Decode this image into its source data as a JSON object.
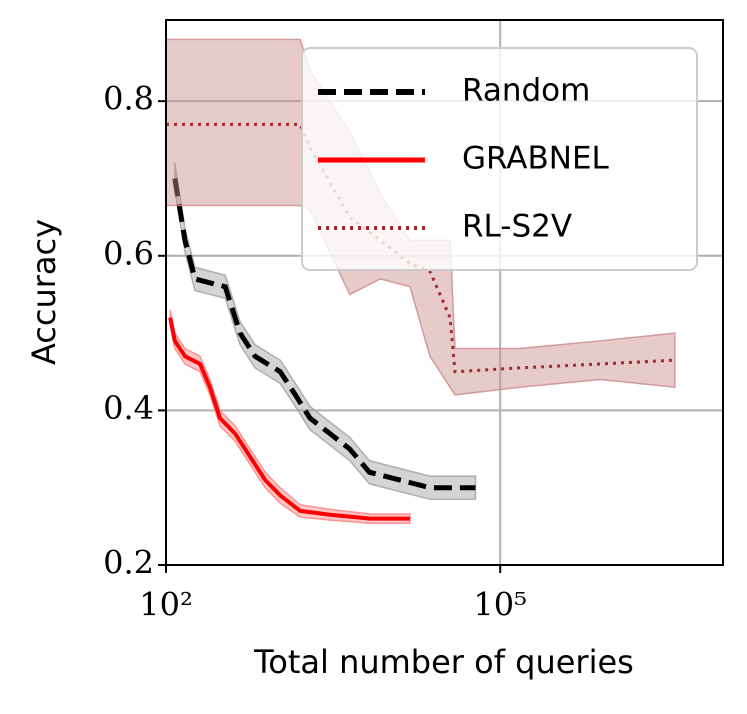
{
  "chart_data": {
    "type": "line",
    "x_label": "Total number of queries",
    "y_label": "Accuracy",
    "xscale": "log",
    "xlim": [
      100,
      10000000
    ],
    "xticks": [
      {
        "value": 100,
        "label": "10²"
      },
      {
        "value": 100000,
        "label": "10⁵"
      }
    ],
    "ylim": [
      0.2,
      0.905
    ],
    "yticks": [
      0.2,
      0.4,
      0.6,
      0.8
    ],
    "grid": true,
    "legend": "upper right",
    "series": [
      {
        "name": "Random",
        "color": "#000000",
        "band_color": "#a0a0a0",
        "linestyle": "dashed",
        "x": [
          120,
          148,
          182,
          340,
          462,
          630,
          1060,
          1450,
          1960,
          2960,
          4460,
          6700,
          12500,
          23400,
          60000
        ],
        "values": [
          0.7,
          0.62,
          0.57,
          0.56,
          0.5,
          0.47,
          0.45,
          0.42,
          0.39,
          0.37,
          0.35,
          0.32,
          0.31,
          0.3,
          0.3
        ],
        "lower": [
          0.685,
          0.605,
          0.555,
          0.545,
          0.485,
          0.455,
          0.435,
          0.405,
          0.375,
          0.355,
          0.335,
          0.305,
          0.295,
          0.285,
          0.285
        ],
        "upper": [
          0.72,
          0.635,
          0.585,
          0.575,
          0.515,
          0.485,
          0.465,
          0.435,
          0.405,
          0.385,
          0.365,
          0.335,
          0.325,
          0.315,
          0.315
        ]
      },
      {
        "name": "GRABNEL",
        "color": "#ff0000",
        "band_color": "#ff8080",
        "linestyle": "solid",
        "x": [
          109,
          120,
          148,
          202,
          248,
          305,
          417,
          569,
          777,
          1060,
          1600,
          2970,
          6800,
          15500
        ],
        "values": [
          0.52,
          0.49,
          0.47,
          0.46,
          0.43,
          0.39,
          0.37,
          0.34,
          0.31,
          0.29,
          0.27,
          0.265,
          0.26,
          0.26
        ],
        "lower": [
          0.51,
          0.48,
          0.46,
          0.45,
          0.42,
          0.38,
          0.36,
          0.33,
          0.3,
          0.28,
          0.262,
          0.258,
          0.254,
          0.254
        ],
        "upper": [
          0.53,
          0.5,
          0.48,
          0.47,
          0.44,
          0.4,
          0.38,
          0.35,
          0.32,
          0.3,
          0.278,
          0.272,
          0.266,
          0.266
        ]
      },
      {
        "name": "RL-S2V",
        "color": "#a52a2a",
        "band_color": "#c98a8a",
        "linestyle": "dotted",
        "x": [
          100,
          1600,
          1960,
          4460,
          8400,
          15500,
          23400,
          35500,
          39300,
          150000,
          790000,
          3700000
        ],
        "values": [
          0.77,
          0.77,
          0.74,
          0.65,
          0.62,
          0.59,
          0.58,
          0.52,
          0.45,
          0.455,
          0.46,
          0.465
        ],
        "lower": [
          0.665,
          0.665,
          0.66,
          0.55,
          0.57,
          0.56,
          0.47,
          0.43,
          0.42,
          0.43,
          0.44,
          0.43
        ],
        "upper": [
          0.88,
          0.88,
          0.84,
          0.76,
          0.68,
          0.62,
          0.62,
          0.62,
          0.48,
          0.48,
          0.49,
          0.5
        ]
      }
    ]
  }
}
